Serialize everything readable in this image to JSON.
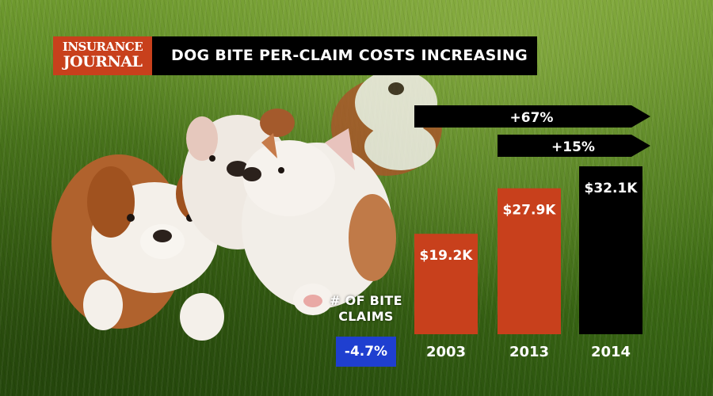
{
  "header": {
    "logo_line1": "INSURANCE",
    "logo_line2": "JOURNAL",
    "title": "DOG BITE PER-CLAIM COSTS INCREASING"
  },
  "colors": {
    "bar_2003": "#c8401c",
    "bar_2013": "#c8401c",
    "bar_2014": "#000000",
    "claims_badge": "#1f3fd0",
    "logo_bg": "#c8401c"
  },
  "chart_data": {
    "type": "bar",
    "title": "DOG BITE PER-CLAIM COSTS INCREASING",
    "categories": [
      "2003",
      "2013",
      "2014"
    ],
    "values": [
      19.2,
      27.9,
      32.1
    ],
    "value_labels": [
      "$19.2K",
      "$27.9K",
      "$32.1K"
    ],
    "ylim": [
      0,
      32.1
    ],
    "annotations": [
      {
        "text": "+67%",
        "from": "2003",
        "to": "2014"
      },
      {
        "text": "+15%",
        "from": "2013",
        "to": "2014"
      }
    ]
  },
  "claims": {
    "label": "# OF BITE CLAIMS",
    "value": "-4.7%"
  }
}
